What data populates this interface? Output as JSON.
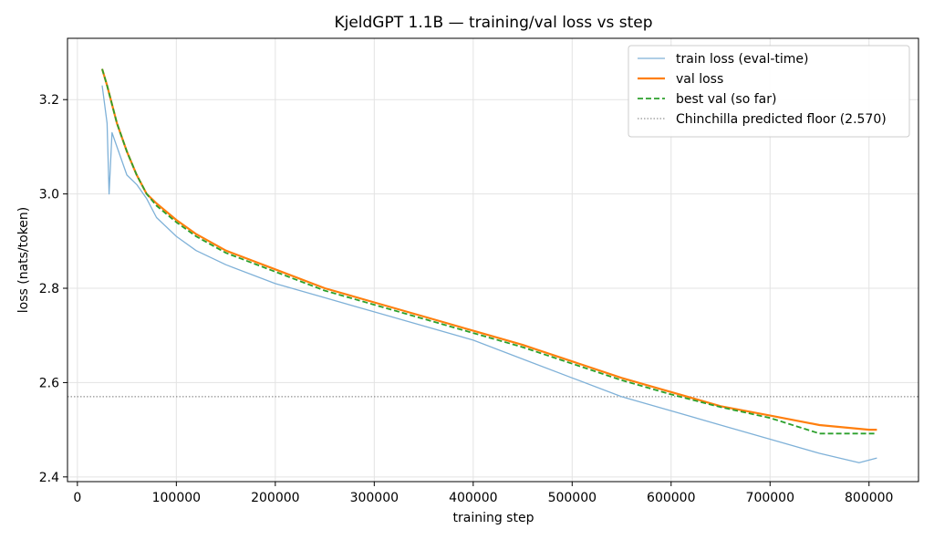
{
  "chart_data": {
    "type": "line",
    "title": "KjeldGPT 1.1B — training/val loss vs step",
    "xlabel": "training step",
    "ylabel": "loss (nats/token)",
    "xlim": [
      -10000,
      850000
    ],
    "ylim": [
      2.39,
      3.33
    ],
    "xticks": [
      0,
      100000,
      200000,
      300000,
      400000,
      500000,
      600000,
      700000,
      800000
    ],
    "yticks": [
      2.4,
      2.6,
      2.8,
      3.0,
      3.2
    ],
    "xtick_labels": [
      "0",
      "100000",
      "200000",
      "300000",
      "400000",
      "500000",
      "600000",
      "700000",
      "800000"
    ],
    "ytick_labels": [
      "2.4",
      "2.6",
      "2.8",
      "3.0",
      "3.2"
    ],
    "grid": true,
    "legend_position": "top-right",
    "reference_line": {
      "name": "Chinchilla predicted floor (2.570)",
      "y": 2.57,
      "color": "#777777",
      "style": "dotted"
    },
    "series": [
      {
        "name": "train loss (eval-time)",
        "color": "#7fb1d8",
        "style": "solid",
        "points": [
          [
            25000,
            3.23
          ],
          [
            30000,
            3.15
          ],
          [
            32000,
            3.0
          ],
          [
            35000,
            3.13
          ],
          [
            40000,
            3.1
          ],
          [
            50000,
            3.04
          ],
          [
            60000,
            3.02
          ],
          [
            70000,
            2.99
          ],
          [
            80000,
            2.95
          ],
          [
            100000,
            2.91
          ],
          [
            120000,
            2.88
          ],
          [
            150000,
            2.85
          ],
          [
            200000,
            2.81
          ],
          [
            250000,
            2.78
          ],
          [
            300000,
            2.75
          ],
          [
            350000,
            2.72
          ],
          [
            400000,
            2.69
          ],
          [
            450000,
            2.65
          ],
          [
            500000,
            2.61
          ],
          [
            550000,
            2.57
          ],
          [
            600000,
            2.54
          ],
          [
            650000,
            2.51
          ],
          [
            700000,
            2.48
          ],
          [
            750000,
            2.45
          ],
          [
            790000,
            2.43
          ],
          [
            808000,
            2.44
          ]
        ]
      },
      {
        "name": "val loss",
        "color": "#ff7f0e",
        "style": "solid",
        "points": [
          [
            25000,
            3.265
          ],
          [
            30000,
            3.23
          ],
          [
            40000,
            3.15
          ],
          [
            50000,
            3.09
          ],
          [
            60000,
            3.04
          ],
          [
            70000,
            3.0
          ],
          [
            80000,
            2.98
          ],
          [
            100000,
            2.945
          ],
          [
            120000,
            2.915
          ],
          [
            150000,
            2.88
          ],
          [
            200000,
            2.84
          ],
          [
            250000,
            2.8
          ],
          [
            300000,
            2.77
          ],
          [
            350000,
            2.74
          ],
          [
            400000,
            2.71
          ],
          [
            450000,
            2.68
          ],
          [
            500000,
            2.645
          ],
          [
            550000,
            2.61
          ],
          [
            600000,
            2.58
          ],
          [
            650000,
            2.55
          ],
          [
            700000,
            2.53
          ],
          [
            750000,
            2.51
          ],
          [
            800000,
            2.5
          ],
          [
            808000,
            2.5
          ]
        ]
      },
      {
        "name": "best val (so far)",
        "color": "#2ca02c",
        "style": "dashed",
        "points": [
          [
            25000,
            3.265
          ],
          [
            30000,
            3.23
          ],
          [
            40000,
            3.15
          ],
          [
            50000,
            3.09
          ],
          [
            60000,
            3.04
          ],
          [
            70000,
            3.0
          ],
          [
            80000,
            2.975
          ],
          [
            100000,
            2.94
          ],
          [
            120000,
            2.91
          ],
          [
            150000,
            2.875
          ],
          [
            200000,
            2.835
          ],
          [
            250000,
            2.795
          ],
          [
            300000,
            2.765
          ],
          [
            350000,
            2.735
          ],
          [
            400000,
            2.705
          ],
          [
            450000,
            2.675
          ],
          [
            500000,
            2.64
          ],
          [
            550000,
            2.605
          ],
          [
            600000,
            2.575
          ],
          [
            650000,
            2.548
          ],
          [
            700000,
            2.525
          ],
          [
            750000,
            2.492
          ],
          [
            808000,
            2.492
          ]
        ]
      }
    ]
  }
}
